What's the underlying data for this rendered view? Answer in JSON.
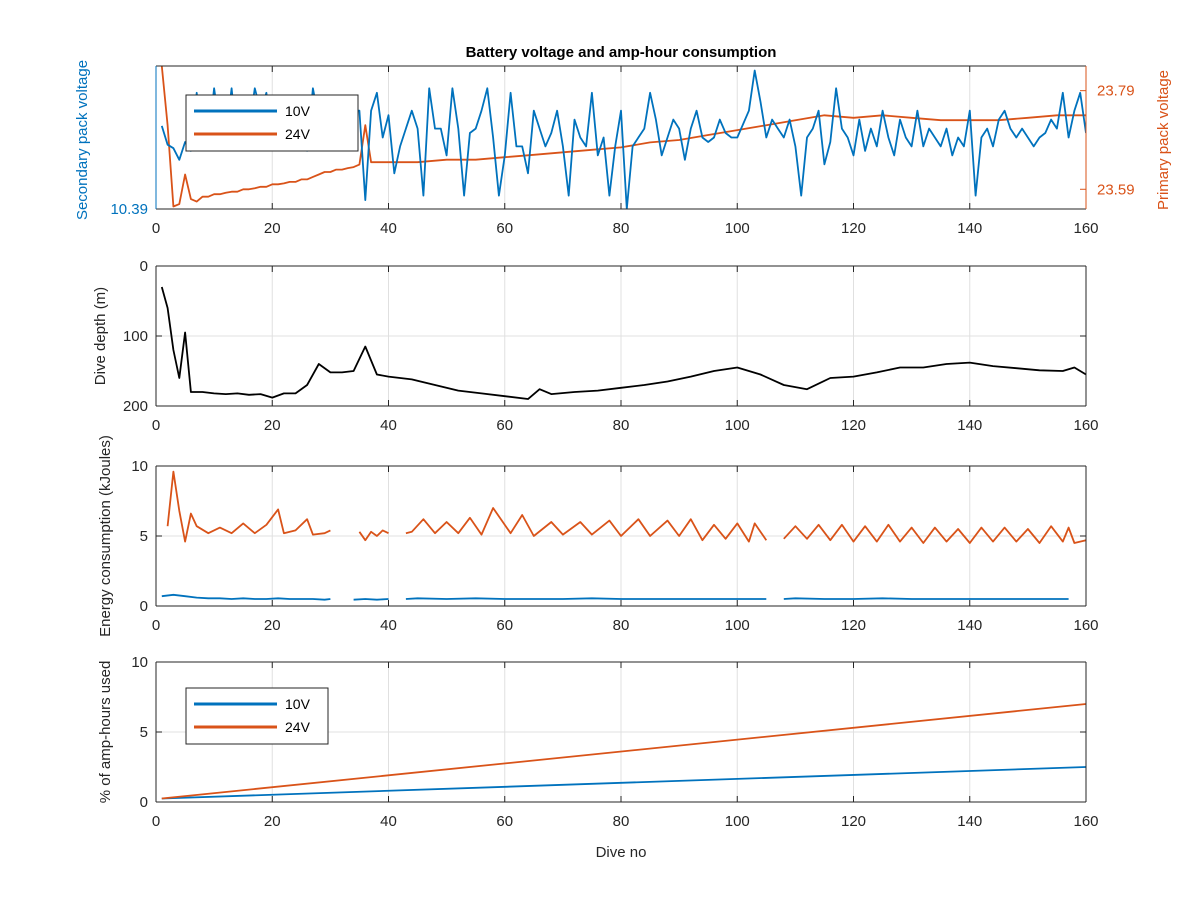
{
  "figure": {
    "title": "Battery voltage and amp-hour consumption",
    "colors": {
      "c10": "#0072bd",
      "c24": "#d95319",
      "depth": "#000000",
      "grid": "#e0e0e0",
      "axis": "#262626"
    }
  },
  "chart_data": [
    {
      "type": "line",
      "title": "Battery voltage and amp-hour consumption",
      "xlabel": "",
      "ylabel_left": "Secondary pack voltage",
      "ylabel_right": "Primary pack voltage",
      "xlim": [
        0,
        160
      ],
      "ylim_left": [
        10.39,
        10.55
      ],
      "ylim_right": [
        23.55,
        23.84
      ],
      "xticks": [
        "0",
        "20",
        "40",
        "60",
        "80",
        "100",
        "120",
        "140",
        "160"
      ],
      "yticks_left": [
        "10.39"
      ],
      "yticks_right": [
        "23.59",
        "23.79"
      ],
      "legend": {
        "position": "top-left",
        "entries": [
          "10V",
          "24V"
        ]
      },
      "grid": true,
      "series": [
        {
          "name": "10V",
          "axis": "left",
          "x": [
            1,
            2,
            3,
            4,
            5,
            6,
            7,
            8,
            9,
            10,
            11,
            12,
            13,
            14,
            15,
            16,
            17,
            18,
            19,
            20,
            21,
            22,
            23,
            24,
            25,
            26,
            27,
            28,
            29,
            30,
            31,
            32,
            33,
            34,
            35,
            36,
            37,
            38,
            39,
            40,
            41,
            42,
            43,
            44,
            45,
            46,
            47,
            48,
            49,
            50,
            51,
            52,
            53,
            54,
            55,
            56,
            57,
            58,
            59,
            60,
            61,
            62,
            63,
            64,
            65,
            66,
            67,
            68,
            69,
            70,
            71,
            72,
            73,
            74,
            75,
            76,
            77,
            78,
            79,
            80,
            81,
            82,
            83,
            84,
            85,
            86,
            87,
            88,
            89,
            90,
            91,
            92,
            93,
            94,
            95,
            96,
            97,
            98,
            99,
            100,
            101,
            102,
            103,
            104,
            105,
            106,
            107,
            108,
            109,
            110,
            111,
            112,
            113,
            114,
            115,
            116,
            117,
            118,
            119,
            120,
            121,
            122,
            123,
            124,
            125,
            126,
            127,
            128,
            129,
            130,
            131,
            132,
            133,
            134,
            135,
            136,
            137,
            138,
            139,
            140,
            141,
            142,
            143,
            144,
            145,
            146,
            147,
            148,
            149,
            150,
            151,
            152,
            153,
            154,
            155,
            156,
            157,
            158,
            159,
            160
          ],
          "y": [
            10.483,
            10.462,
            10.458,
            10.445,
            10.465,
            10.455,
            10.52,
            10.465,
            10.465,
            10.525,
            10.48,
            10.47,
            10.525,
            10.46,
            10.48,
            10.48,
            10.525,
            10.5,
            10.52,
            10.46,
            10.47,
            10.515,
            10.49,
            10.48,
            10.49,
            10.455,
            10.525,
            10.49,
            10.495,
            10.5,
            10.5,
            10.49,
            10.495,
            10.5,
            10.5,
            10.4,
            10.5,
            10.52,
            10.47,
            10.495,
            10.43,
            10.46,
            10.48,
            10.5,
            10.48,
            10.405,
            10.525,
            10.48,
            10.48,
            10.45,
            10.525,
            10.48,
            10.405,
            10.475,
            10.48,
            10.5,
            10.525,
            10.47,
            10.405,
            10.45,
            10.52,
            10.46,
            10.46,
            10.43,
            10.5,
            10.48,
            10.46,
            10.475,
            10.5,
            10.46,
            10.405,
            10.49,
            10.47,
            10.46,
            10.52,
            10.45,
            10.47,
            10.405,
            10.46,
            10.5,
            10.39,
            10.46,
            10.47,
            10.48,
            10.52,
            10.49,
            10.45,
            10.47,
            10.49,
            10.48,
            10.445,
            10.48,
            10.5,
            10.47,
            10.465,
            10.47,
            10.49,
            10.475,
            10.47,
            10.47,
            10.485,
            10.5,
            10.545,
            10.51,
            10.47,
            10.49,
            10.48,
            10.47,
            10.49,
            10.46,
            10.405,
            10.47,
            10.48,
            10.5,
            10.44,
            10.465,
            10.525,
            10.48,
            10.47,
            10.45,
            10.49,
            10.455,
            10.48,
            10.46,
            10.5,
            10.47,
            10.45,
            10.49,
            10.47,
            10.46,
            10.5,
            10.46,
            10.48,
            10.47,
            10.46,
            10.48,
            10.45,
            10.47,
            10.46,
            10.5,
            10.405,
            10.47,
            10.48,
            10.46,
            10.49,
            10.5,
            10.48,
            10.47,
            10.48,
            10.47,
            10.46,
            10.47,
            10.475,
            10.49,
            10.48,
            10.52,
            10.47,
            10.5,
            10.52,
            10.475
          ]
        },
        {
          "name": "24V",
          "axis": "right",
          "x": [
            1,
            2,
            3,
            4,
            5,
            6,
            7,
            8,
            9,
            10,
            11,
            12,
            13,
            14,
            15,
            16,
            17,
            18,
            19,
            20,
            21,
            22,
            23,
            24,
            25,
            26,
            27,
            28,
            29,
            30,
            31,
            32,
            33,
            34,
            35,
            36,
            37,
            38,
            39,
            40,
            45,
            50,
            55,
            60,
            65,
            70,
            75,
            80,
            85,
            90,
            95,
            100,
            105,
            110,
            115,
            120,
            125,
            130,
            135,
            140,
            145,
            150,
            155,
            160
          ],
          "y": [
            23.84,
            23.72,
            23.555,
            23.56,
            23.62,
            23.57,
            23.565,
            23.575,
            23.575,
            23.58,
            23.58,
            23.583,
            23.585,
            23.585,
            23.59,
            23.59,
            23.592,
            23.595,
            23.595,
            23.6,
            23.6,
            23.602,
            23.605,
            23.605,
            23.61,
            23.61,
            23.615,
            23.62,
            23.625,
            23.625,
            23.63,
            23.63,
            23.633,
            23.635,
            23.64,
            23.72,
            23.645,
            23.645,
            23.645,
            23.645,
            23.645,
            23.65,
            23.65,
            23.655,
            23.66,
            23.665,
            23.67,
            23.675,
            23.685,
            23.69,
            23.7,
            23.71,
            23.72,
            23.73,
            23.74,
            23.735,
            23.74,
            23.735,
            23.73,
            23.73,
            23.73,
            23.735,
            23.74,
            23.74
          ]
        }
      ]
    },
    {
      "type": "line",
      "title": "",
      "xlabel": "",
      "ylabel": "Dive depth (m)",
      "xlim": [
        0,
        160
      ],
      "ylim": [
        200,
        0
      ],
      "y_reversed": true,
      "xticks": [
        "0",
        "20",
        "40",
        "60",
        "80",
        "100",
        "120",
        "140",
        "160"
      ],
      "yticks": [
        "0",
        "100",
        "200"
      ],
      "grid": true,
      "series": [
        {
          "name": "",
          "x": [
            1,
            2,
            3,
            4,
            5,
            6,
            8,
            10,
            12,
            14,
            16,
            18,
            20,
            22,
            24,
            26,
            28,
            30,
            32,
            34,
            36,
            38,
            40,
            44,
            48,
            52,
            56,
            60,
            64,
            66,
            68,
            72,
            76,
            80,
            84,
            88,
            92,
            96,
            100,
            104,
            108,
            112,
            116,
            120,
            124,
            128,
            132,
            136,
            140,
            144,
            148,
            152,
            156,
            158,
            160
          ],
          "y": [
            30,
            60,
            120,
            160,
            95,
            180,
            180,
            182,
            183,
            182,
            184,
            183,
            188,
            182,
            182,
            170,
            140,
            152,
            152,
            150,
            115,
            155,
            158,
            162,
            170,
            178,
            182,
            186,
            190,
            176,
            183,
            180,
            178,
            174,
            170,
            165,
            158,
            150,
            145,
            155,
            170,
            176,
            160,
            158,
            152,
            145,
            145,
            140,
            138,
            143,
            146,
            149,
            150,
            145,
            155
          ]
        }
      ]
    },
    {
      "type": "line",
      "title": "",
      "xlabel": "",
      "ylabel": "Energy consumption (kJoules)",
      "xlim": [
        0,
        160
      ],
      "ylim": [
        0,
        10
      ],
      "xticks": [
        "0",
        "20",
        "40",
        "60",
        "80",
        "100",
        "120",
        "140",
        "160"
      ],
      "yticks": [
        "0",
        "5",
        "10"
      ],
      "grid": true,
      "series": [
        {
          "name": "24V",
          "note_gaps": [
            30,
            35,
            40,
            43,
            105,
            108,
            156,
            157
          ],
          "x": [
            2,
            3,
            4,
            5,
            6,
            7,
            9,
            11,
            13,
            15,
            17,
            19,
            21,
            22,
            24,
            26,
            27,
            29,
            30,
            35,
            36,
            37,
            38,
            39,
            40,
            43,
            44,
            46,
            48,
            50,
            52,
            54,
            56,
            58,
            61,
            63,
            65,
            68,
            70,
            73,
            75,
            78,
            80,
            83,
            85,
            88,
            90,
            92,
            94,
            96,
            98,
            100,
            102,
            103,
            105,
            108,
            110,
            112,
            114,
            116,
            118,
            120,
            122,
            124,
            126,
            128,
            130,
            132,
            134,
            136,
            138,
            140,
            142,
            144,
            146,
            148,
            150,
            152,
            154,
            156,
            157,
            158,
            160
          ],
          "y": [
            5.7,
            9.6,
            6.8,
            4.6,
            6.6,
            5.7,
            5.2,
            5.6,
            5.2,
            5.9,
            5.2,
            5.8,
            6.9,
            5.2,
            5.4,
            6.2,
            5.1,
            5.2,
            5.4,
            5.3,
            4.7,
            5.3,
            5.0,
            5.4,
            5.2,
            5.2,
            5.3,
            6.2,
            5.2,
            6.0,
            5.2,
            6.3,
            5.1,
            7.0,
            5.2,
            6.5,
            5.0,
            6.0,
            5.1,
            6.0,
            5.1,
            6.1,
            5.0,
            6.2,
            5.0,
            6.1,
            5.0,
            6.2,
            4.7,
            5.8,
            4.8,
            5.9,
            4.6,
            5.9,
            4.7,
            4.8,
            5.7,
            4.8,
            5.8,
            4.7,
            5.8,
            4.6,
            5.7,
            4.6,
            5.8,
            4.6,
            5.6,
            4.5,
            5.6,
            4.6,
            5.5,
            4.5,
            5.6,
            4.6,
            5.6,
            4.6,
            5.5,
            4.5,
            5.7,
            4.6,
            5.6,
            4.5,
            4.7
          ]
        },
        {
          "name": "10V",
          "x": [
            1,
            3,
            5,
            7,
            9,
            11,
            13,
            15,
            17,
            19,
            21,
            23,
            25,
            27,
            29,
            30,
            34,
            36,
            38,
            40,
            43,
            45,
            50,
            55,
            60,
            65,
            70,
            75,
            80,
            85,
            90,
            95,
            100,
            105,
            108,
            110,
            115,
            120,
            125,
            130,
            135,
            140,
            145,
            150,
            155,
            157,
            160
          ],
          "y": [
            0.7,
            0.8,
            0.7,
            0.6,
            0.55,
            0.55,
            0.5,
            0.55,
            0.5,
            0.5,
            0.55,
            0.5,
            0.5,
            0.5,
            0.45,
            0.5,
            0.45,
            0.5,
            0.45,
            0.5,
            0.5,
            0.55,
            0.5,
            0.55,
            0.5,
            0.5,
            0.5,
            0.55,
            0.5,
            0.5,
            0.5,
            0.5,
            0.5,
            0.5,
            0.5,
            0.55,
            0.5,
            0.5,
            0.55,
            0.5,
            0.5,
            0.5,
            0.5,
            0.5,
            0.5,
            0.5,
            0.5
          ]
        }
      ]
    },
    {
      "type": "line",
      "title": "",
      "xlabel": "Dive no",
      "ylabel": "% of amp-hours used",
      "xlim": [
        0,
        160
      ],
      "ylim": [
        0,
        10
      ],
      "xticks": [
        "0",
        "20",
        "40",
        "60",
        "80",
        "100",
        "120",
        "140",
        "160"
      ],
      "yticks": [
        "0",
        "5",
        "10"
      ],
      "legend": {
        "position": "top-left",
        "entries": [
          "10V",
          "24V"
        ]
      },
      "grid": true,
      "series": [
        {
          "name": "10V",
          "x": [
            1,
            160
          ],
          "y": [
            0.25,
            2.5
          ]
        },
        {
          "name": "24V",
          "x": [
            1,
            160
          ],
          "y": [
            0.25,
            7.0
          ]
        }
      ]
    }
  ]
}
